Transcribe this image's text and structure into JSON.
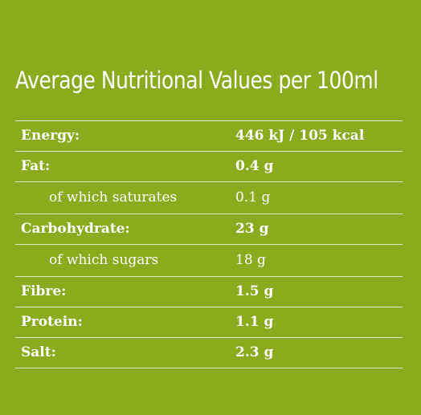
{
  "title": "Average Nutritional Values per 100ml",
  "rows": [
    {
      "label": "Energy:",
      "value": "446 kJ / 105 kcal"
    },
    {
      "label": "Fat:",
      "value": "0.4 g"
    },
    {
      "label": "of which saturates",
      "value": "0.1 g"
    },
    {
      "label": "Carbohydrate:",
      "value": "23 g"
    },
    {
      "label": "of which sugars",
      "value": "18 g"
    },
    {
      "label": "Fibre:",
      "value": "1.5 g"
    },
    {
      "label": "Protein:",
      "value": "1.1 g"
    },
    {
      "label": "Salt:",
      "value": "2.3 g"
    }
  ],
  "colors": {
    "background": "#8aab1e",
    "text": "#ffffff"
  }
}
